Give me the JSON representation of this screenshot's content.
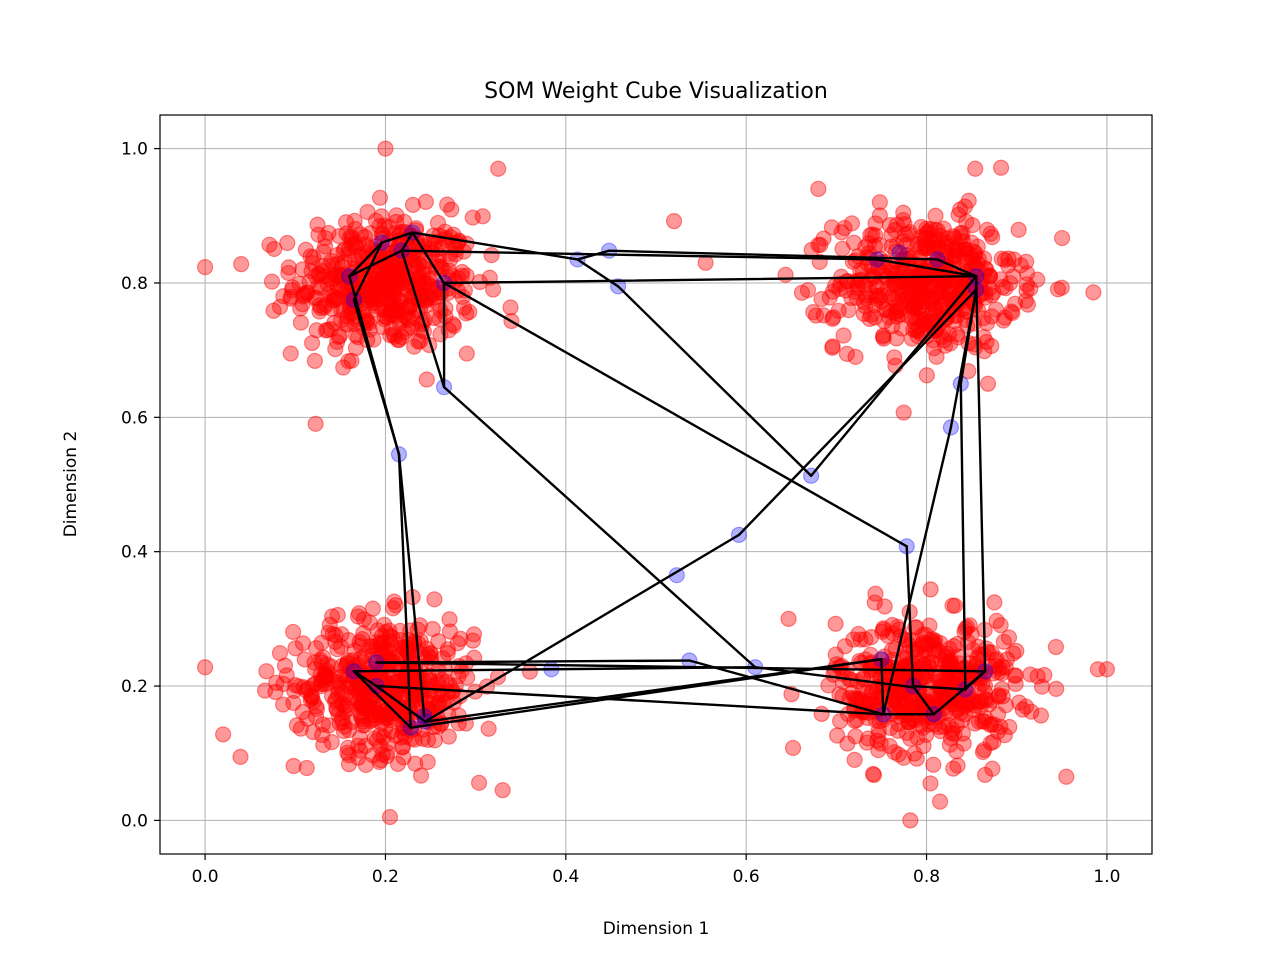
{
  "chart_data": {
    "type": "scatter",
    "title": "SOM Weight Cube Visualization",
    "xlabel": "Dimension 1",
    "ylabel": "Dimension 2",
    "xlim": [
      -0.05,
      1.05
    ],
    "ylim": [
      -0.05,
      1.05
    ],
    "x_ticks": [
      0.0,
      0.2,
      0.4,
      0.6,
      0.8,
      1.0
    ],
    "x_tick_labels": [
      "0.0",
      "0.2",
      "0.4",
      "0.6",
      "0.8",
      "1.0"
    ],
    "y_ticks": [
      0.0,
      0.2,
      0.4,
      0.6,
      0.8,
      1.0
    ],
    "y_tick_labels": [
      "0.0",
      "0.2",
      "0.4",
      "0.6",
      "0.8",
      "1.0"
    ],
    "grid": true,
    "colors": {
      "data_points": "#ff0000",
      "neurons": "#0000ff",
      "connections": "#000000",
      "grid": "#b0b0b0"
    },
    "data_clusters": [
      {
        "center": [
          0.2,
          0.8
        ],
        "spread": 0.05,
        "count": 500
      },
      {
        "center": [
          0.8,
          0.8
        ],
        "spread": 0.05,
        "count": 500
      },
      {
        "center": [
          0.2,
          0.2
        ],
        "spread": 0.05,
        "count": 500
      },
      {
        "center": [
          0.8,
          0.2
        ],
        "spread": 0.05,
        "count": 500
      }
    ],
    "data_samples": [
      [
        0.2,
        1.0
      ],
      [
        0.0,
        0.228
      ],
      [
        0.02,
        0.128
      ],
      [
        0.205,
        0.005
      ],
      [
        0.782,
        0.0
      ],
      [
        1.0,
        0.225
      ],
      [
        0.985,
        0.786
      ],
      [
        0.04,
        0.828
      ],
      [
        0.095,
        0.695
      ],
      [
        0.325,
        0.97
      ],
      [
        0.68,
        0.94
      ],
      [
        0.854,
        0.97
      ],
      [
        0.955,
        0.065
      ],
      [
        0.815,
        0.028
      ],
      [
        0.52,
        0.892
      ],
      [
        0.33,
        0.045
      ],
      [
        0.068,
        0.222
      ],
      [
        0.555,
        0.83
      ],
      [
        0.647,
        0.3
      ],
      [
        0.99,
        0.225
      ]
    ],
    "neurons": [
      [
        0.23,
        0.875
      ],
      [
        0.196,
        0.86
      ],
      [
        0.16,
        0.81
      ],
      [
        0.165,
        0.775
      ],
      [
        0.218,
        0.848
      ],
      [
        0.265,
        0.8
      ],
      [
        0.265,
        0.645
      ],
      [
        0.215,
        0.545
      ],
      [
        0.413,
        0.835
      ],
      [
        0.448,
        0.848
      ],
      [
        0.458,
        0.795
      ],
      [
        0.672,
        0.513
      ],
      [
        0.592,
        0.425
      ],
      [
        0.523,
        0.365
      ],
      [
        0.77,
        0.845
      ],
      [
        0.745,
        0.835
      ],
      [
        0.812,
        0.835
      ],
      [
        0.855,
        0.81
      ],
      [
        0.855,
        0.79
      ],
      [
        0.838,
        0.65
      ],
      [
        0.827,
        0.585
      ],
      [
        0.778,
        0.408
      ],
      [
        0.865,
        0.222
      ],
      [
        0.843,
        0.195
      ],
      [
        0.808,
        0.158
      ],
      [
        0.752,
        0.158
      ],
      [
        0.785,
        0.2
      ],
      [
        0.75,
        0.24
      ],
      [
        0.61,
        0.228
      ],
      [
        0.537,
        0.238
      ],
      [
        0.384,
        0.225
      ],
      [
        0.165,
        0.222
      ],
      [
        0.19,
        0.235
      ],
      [
        0.19,
        0.2
      ],
      [
        0.243,
        0.155
      ],
      [
        0.228,
        0.138
      ],
      [
        0.244,
        0.147
      ]
    ],
    "connections": [
      [
        0.23,
        0.875,
        0.196,
        0.86
      ],
      [
        0.196,
        0.86,
        0.16,
        0.81
      ],
      [
        0.16,
        0.81,
        0.218,
        0.848
      ],
      [
        0.218,
        0.848,
        0.23,
        0.875
      ],
      [
        0.23,
        0.875,
        0.265,
        0.8
      ],
      [
        0.218,
        0.848,
        0.265,
        0.645
      ],
      [
        0.265,
        0.645,
        0.265,
        0.8
      ],
      [
        0.16,
        0.81,
        0.215,
        0.545
      ],
      [
        0.165,
        0.775,
        0.215,
        0.545
      ],
      [
        0.196,
        0.86,
        0.165,
        0.775
      ],
      [
        0.23,
        0.875,
        0.413,
        0.835
      ],
      [
        0.218,
        0.848,
        0.745,
        0.835
      ],
      [
        0.413,
        0.835,
        0.448,
        0.848
      ],
      [
        0.448,
        0.848,
        0.812,
        0.835
      ],
      [
        0.413,
        0.835,
        0.458,
        0.795
      ],
      [
        0.458,
        0.795,
        0.672,
        0.513
      ],
      [
        0.672,
        0.513,
        0.855,
        0.81
      ],
      [
        0.265,
        0.8,
        0.855,
        0.81
      ],
      [
        0.265,
        0.8,
        0.778,
        0.408
      ],
      [
        0.745,
        0.835,
        0.855,
        0.81
      ],
      [
        0.812,
        0.835,
        0.855,
        0.81
      ],
      [
        0.855,
        0.81,
        0.855,
        0.79
      ],
      [
        0.855,
        0.79,
        0.838,
        0.65
      ],
      [
        0.838,
        0.65,
        0.843,
        0.195
      ],
      [
        0.855,
        0.81,
        0.865,
        0.222
      ],
      [
        0.855,
        0.79,
        0.827,
        0.585
      ],
      [
        0.827,
        0.585,
        0.752,
        0.158
      ],
      [
        0.778,
        0.408,
        0.785,
        0.2
      ],
      [
        0.785,
        0.2,
        0.808,
        0.158
      ],
      [
        0.808,
        0.158,
        0.865,
        0.222
      ],
      [
        0.865,
        0.222,
        0.843,
        0.195
      ],
      [
        0.843,
        0.195,
        0.785,
        0.2
      ],
      [
        0.752,
        0.158,
        0.808,
        0.158
      ],
      [
        0.75,
        0.24,
        0.752,
        0.158
      ],
      [
        0.75,
        0.24,
        0.244,
        0.147
      ],
      [
        0.215,
        0.545,
        0.243,
        0.155
      ],
      [
        0.215,
        0.545,
        0.228,
        0.138
      ],
      [
        0.265,
        0.645,
        0.61,
        0.228
      ],
      [
        0.228,
        0.138,
        0.165,
        0.222
      ],
      [
        0.165,
        0.222,
        0.19,
        0.2
      ],
      [
        0.19,
        0.2,
        0.244,
        0.147
      ],
      [
        0.19,
        0.235,
        0.537,
        0.238
      ],
      [
        0.537,
        0.238,
        0.752,
        0.158
      ],
      [
        0.19,
        0.2,
        0.752,
        0.158
      ],
      [
        0.165,
        0.222,
        0.384,
        0.225
      ],
      [
        0.19,
        0.235,
        0.865,
        0.222
      ],
      [
        0.228,
        0.138,
        0.75,
        0.24
      ],
      [
        0.244,
        0.147,
        0.592,
        0.425
      ],
      [
        0.592,
        0.425,
        0.855,
        0.79
      ],
      [
        0.384,
        0.225,
        0.61,
        0.228
      ],
      [
        0.61,
        0.228,
        0.786,
        0.198
      ]
    ]
  }
}
